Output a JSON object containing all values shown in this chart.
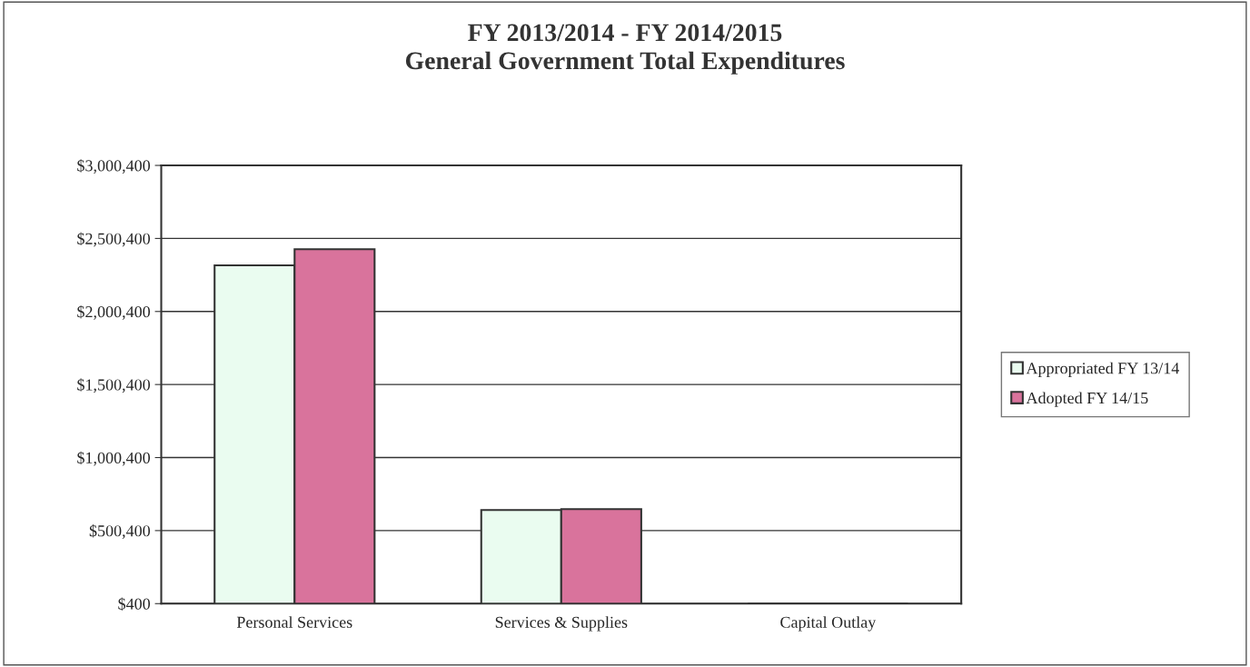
{
  "chart_data": {
    "type": "bar",
    "title": "FY 2013/2014 - FY 2014/2015\nGeneral Government Total Expenditures",
    "categories": [
      "Personal Services",
      "Services & Supplies",
      "Capital Outlay"
    ],
    "series": [
      {
        "name": "Appropriated FY 13/14",
        "color": "#eafcf0",
        "values": [
          2316000,
          641000,
          400
        ]
      },
      {
        "name": "Adopted FY 14/15",
        "color": "#d9739c",
        "values": [
          2427000,
          648000,
          400
        ]
      }
    ],
    "ylim": [
      400,
      3000400
    ],
    "yticks": [
      {
        "value": 400,
        "label": "$400"
      },
      {
        "value": 500400,
        "label": "$500,400"
      },
      {
        "value": 1000400,
        "label": "$1,000,400"
      },
      {
        "value": 1500400,
        "label": "$1,500,400"
      },
      {
        "value": 2000400,
        "label": "$2,000,400"
      },
      {
        "value": 2500400,
        "label": "$2,500,400"
      },
      {
        "value": 3000400,
        "label": "$3,000,400"
      }
    ],
    "grid": "y",
    "legend": "right"
  }
}
